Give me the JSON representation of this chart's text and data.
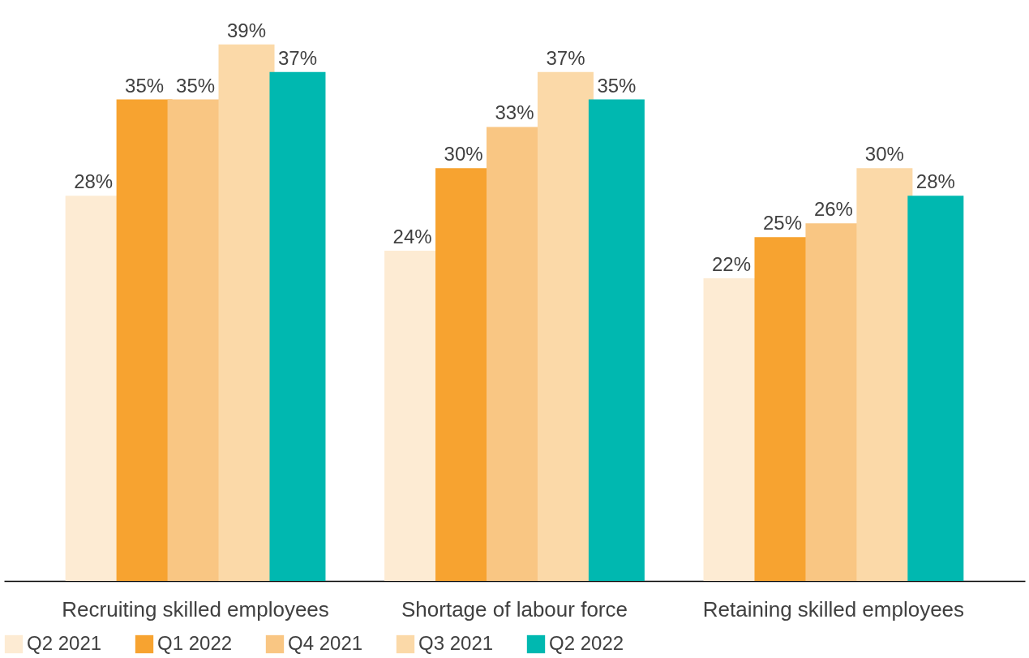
{
  "chart_data": {
    "type": "bar",
    "categories": [
      "Recruiting skilled employees",
      "Shortage of labour force",
      "Retaining skilled employees"
    ],
    "series": [
      {
        "name": "Q2 2021",
        "color": "#fdebd3",
        "values": [
          28,
          24,
          22
        ],
        "value_labels": [
          "28%",
          "24%",
          "22%"
        ]
      },
      {
        "name": "Q1 2022",
        "color": "#f7a330",
        "values": [
          35,
          30,
          25
        ],
        "value_labels": [
          "35%",
          "30%",
          "25%"
        ]
      },
      {
        "name": "Q4 2021",
        "color": "#f9c683",
        "values": [
          35,
          33,
          26
        ],
        "value_labels": [
          "35%",
          "33%",
          "26%"
        ]
      },
      {
        "name": "Q3 2021",
        "color": "#fbd9a8",
        "values": [
          39,
          37,
          30
        ],
        "value_labels": [
          "39%",
          "37%",
          "30%"
        ]
      },
      {
        "name": "Q2 2022",
        "color": "#00b8b0",
        "values": [
          37,
          35,
          28
        ],
        "value_labels": [
          "37%",
          "35%",
          "28%"
        ]
      }
    ],
    "legend": "bottom",
    "grid": false
  }
}
